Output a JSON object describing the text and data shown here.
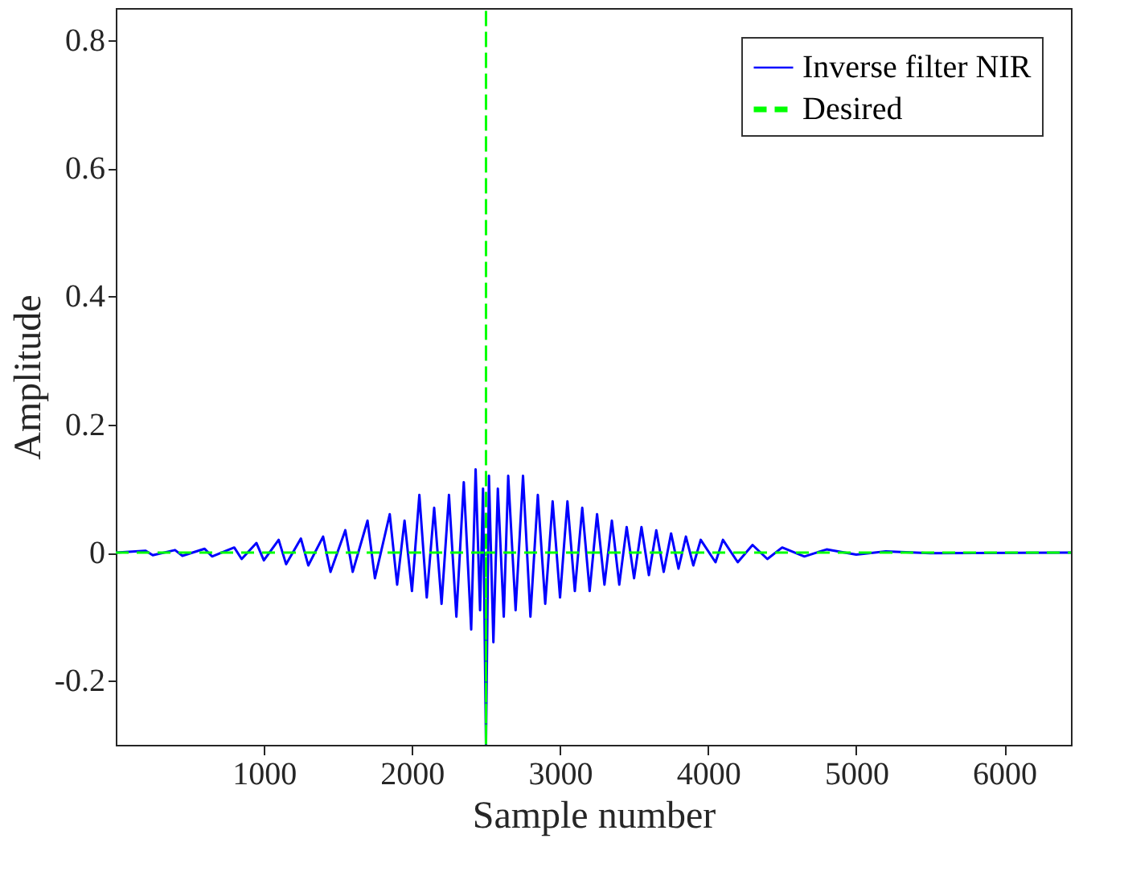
{
  "chart_data": {
    "type": "line",
    "xlabel": "Sample number",
    "ylabel": "Amplitude",
    "xlim": [
      0,
      6450
    ],
    "ylim": [
      -0.3,
      0.85
    ],
    "xticks": [
      1000,
      2000,
      3000,
      4000,
      5000,
      6000
    ],
    "yticks": [
      -0.2,
      0,
      0.2,
      0.4,
      0.6,
      0.8
    ],
    "grid": false,
    "legend": "top right",
    "series": [
      {
        "name": "Inverse filter NIR",
        "color": "#0000ff",
        "line_style": "solid",
        "x": [
          0,
          200,
          250,
          400,
          450,
          600,
          650,
          800,
          850,
          950,
          1000,
          1100,
          1150,
          1250,
          1300,
          1400,
          1450,
          1550,
          1600,
          1700,
          1750,
          1850,
          1900,
          1950,
          2000,
          2050,
          2100,
          2150,
          2200,
          2250,
          2300,
          2350,
          2400,
          2430,
          2460,
          2480,
          2500,
          2520,
          2550,
          2580,
          2620,
          2650,
          2700,
          2750,
          2800,
          2850,
          2900,
          2950,
          3000,
          3050,
          3100,
          3150,
          3200,
          3250,
          3300,
          3350,
          3400,
          3450,
          3500,
          3550,
          3600,
          3650,
          3700,
          3750,
          3800,
          3850,
          3900,
          3950,
          4050,
          4100,
          4200,
          4300,
          4400,
          4500,
          4650,
          4800,
          5000,
          5200,
          5500,
          6450
        ],
        "values": [
          0,
          0.003,
          -0.004,
          0.004,
          -0.005,
          0.006,
          -0.006,
          0.008,
          -0.01,
          0.015,
          -0.012,
          0.02,
          -0.018,
          0.022,
          -0.02,
          0.025,
          -0.03,
          0.035,
          -0.03,
          0.05,
          -0.04,
          0.06,
          -0.05,
          0.05,
          -0.06,
          0.09,
          -0.07,
          0.07,
          -0.08,
          0.09,
          -0.1,
          0.11,
          -0.12,
          0.13,
          -0.09,
          0.1,
          -0.3,
          0.12,
          -0.14,
          0.1,
          -0.1,
          0.12,
          -0.09,
          0.12,
          -0.1,
          0.09,
          -0.08,
          0.08,
          -0.07,
          0.08,
          -0.06,
          0.07,
          -0.06,
          0.06,
          -0.05,
          0.05,
          -0.05,
          0.04,
          -0.04,
          0.04,
          -0.035,
          0.035,
          -0.03,
          0.03,
          -0.025,
          0.025,
          -0.02,
          0.02,
          -0.015,
          0.02,
          -0.015,
          0.012,
          -0.01,
          0.008,
          -0.006,
          0.005,
          -0.003,
          0.002,
          -0.001,
          0
        ]
      },
      {
        "name": "Desired",
        "color": "#00ff00",
        "line_style": "dashed",
        "x": [
          0,
          2500,
          2500,
          2500,
          2500,
          6450
        ],
        "values": [
          0,
          0,
          0.85,
          -0.3,
          0,
          0
        ]
      }
    ]
  }
}
